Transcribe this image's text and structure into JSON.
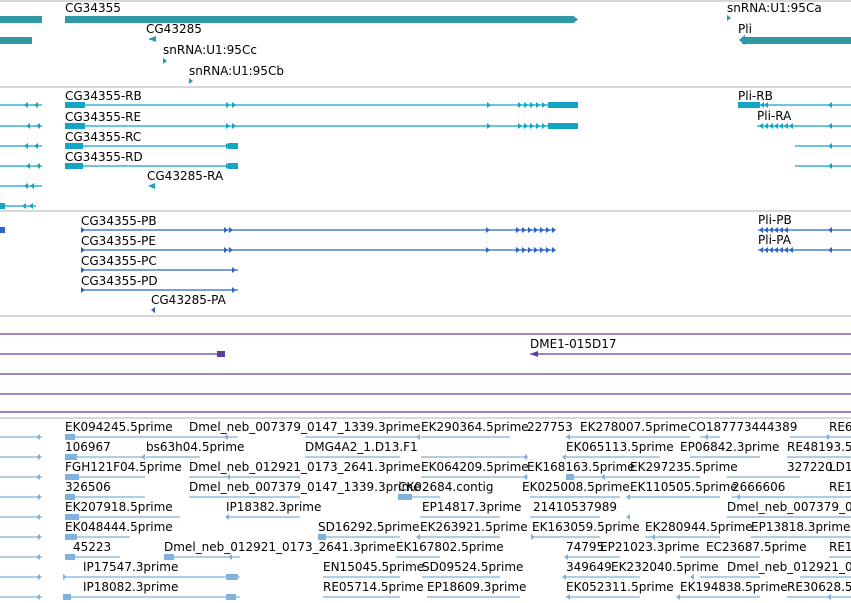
{
  "colors": {
    "gene": "#2e9aa6",
    "transcript": "#13a5c4",
    "protein": "#2a64cc",
    "bac": "#5c3e9e",
    "est": "#7fb2dc",
    "divider": "#b0b0b0"
  },
  "panels": {
    "genes": [
      {
        "label": "CG34355"
      },
      {
        "label": "CG43285"
      },
      {
        "label": "snRNA:U1:95Cc"
      },
      {
        "label": "snRNA:U1:95Cb"
      },
      {
        "label": "snRNA:U1:95Ca"
      },
      {
        "label": "Pli"
      }
    ],
    "transcripts": [
      {
        "label": "CG34355-RB"
      },
      {
        "label": "CG34355-RE"
      },
      {
        "label": "CG34355-RC"
      },
      {
        "label": "CG34355-RD"
      },
      {
        "label": "CG43285-RA"
      },
      {
        "label": "Pli-RB"
      },
      {
        "label": "Pli-RA"
      }
    ],
    "proteins": [
      {
        "label": "CG34355-PB"
      },
      {
        "label": "CG34355-PE"
      },
      {
        "label": "CG34355-PC"
      },
      {
        "label": "CG34355-PD"
      },
      {
        "label": "CG43285-PA"
      },
      {
        "label": "Pli-PB"
      },
      {
        "label": "Pli-PA"
      }
    ],
    "bac": [
      {
        "label": "DME1-015D17"
      }
    ],
    "est": [
      "EK094245.5prime",
      "Dmel_neb_007379_0147_1339.3prime",
      "EK290364.5prime",
      "227753",
      "EK278007.5prime",
      "CO187773444389",
      "RE6",
      "106967",
      "bs63h04.5prime",
      "DMG4A2_1.D13.F1",
      "EK065113.5prime",
      "EP06842.3prime",
      "RE48193.5",
      "FGH121F04.5prime",
      "Dmel_neb_012921_0173_2641.3prime",
      "EK064209.5prime",
      "EK168163.5prime",
      "EK297235.5prime",
      "327220",
      "LD1",
      "326506",
      "Dmel_neb_007379_0147_1339.3prime",
      "CK02684.contig",
      "EK025008.5prime",
      "EK110505.5prime",
      "2666606",
      "RE1",
      "EK207918.5prime",
      "IP18382.3prime",
      "EP14817.3prime",
      "21410537989",
      "Dmel_neb_007379_0147_",
      "EK048444.5prime",
      "SD16292.5prime",
      "EK263921.5prime",
      "EK163059.5prime",
      "EK280944.5prime",
      "EP13818.3prime",
      "45223",
      "Dmel_neb_012921_0173_2641.3prime",
      "EK167802.5prime",
      "74795",
      "EP21023.3prime",
      "EC23687.5prime",
      "RE1",
      "IP17547.3prime",
      "EN15045.5prime",
      "SD09524.5prime",
      "349649",
      "EK232040.5prime",
      "Dmel_neb_012921_0",
      "IP18082.3prime",
      "RE05714.5prime",
      "EP18609.3prime",
      "EK052311.5prime",
      "EK194838.5prime",
      "RE30628.5"
    ]
  }
}
